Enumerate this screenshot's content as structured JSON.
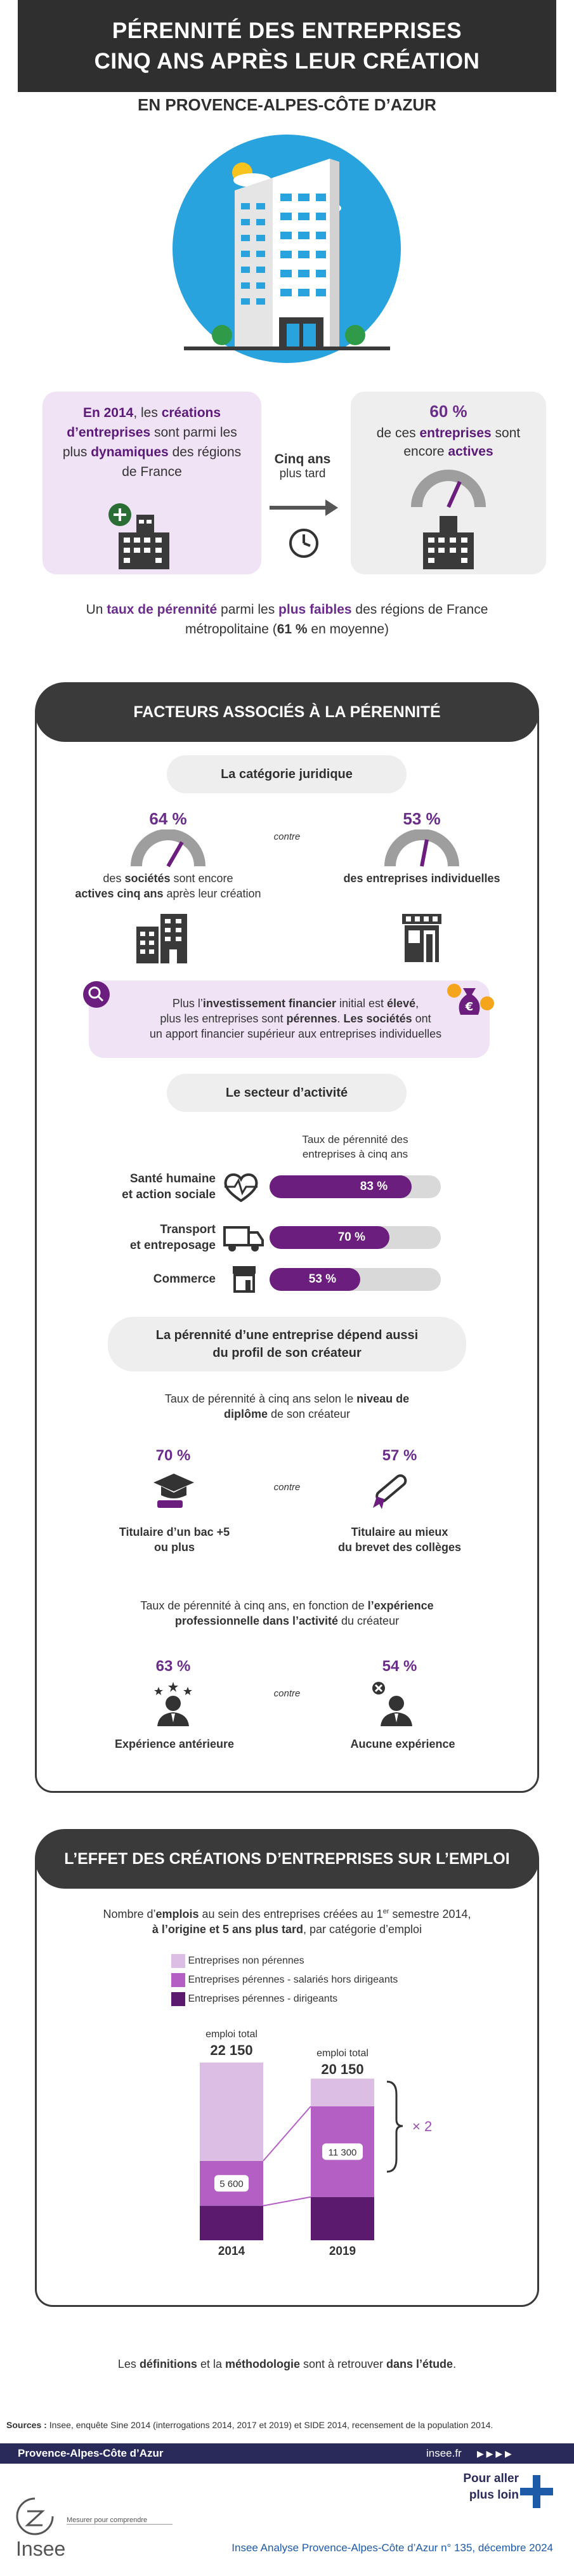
{
  "header": {
    "line1": "PÉRENNITÉ DES ENTREPRISES",
    "line2": "CINQ ANS APRÈS LEUR CRÉATION"
  },
  "region": "EN PROVENCE-ALPES-CÔTE D’AZUR",
  "intro": {
    "left_prefix": "En 2014",
    "left_mid1": ", les ",
    "left_bold1": "créations d’entreprises",
    "left_mid2": " sont parmi les plus ",
    "left_bold2": "dynamiques",
    "left_end": " des régions de France",
    "arrow_bold": "Cinq ans",
    "arrow_sub": "plus tard",
    "right_pct": "60 %",
    "right_mid1": "de ces ",
    "right_bold1": "entreprises",
    "right_mid2": " sont encore ",
    "right_bold2": "actives",
    "summary_1": "Un ",
    "summary_b1": "taux de pérennité",
    "summary_2": " parmi les ",
    "summary_b2": "plus faibles",
    "summary_3": " des régions de France métropolitaine (",
    "summary_b3": "61 %",
    "summary_4": " en moyenne)"
  },
  "section1": {
    "title": "FACTEURS ASSOCIÉS À LA PÉRENNITÉ",
    "legal": {
      "label": "La catégorie juridique",
      "left_pct": "64 %",
      "left_t1": "des ",
      "left_b1": "sociétés",
      "left_t2": " sont encore",
      "left_b2": "actives cinq ans",
      "left_t3": " après leur création",
      "contre": "contre",
      "right_pct": "53 %",
      "right_b": "des entreprises individuelles",
      "note_1": "Plus l’",
      "note_b1": "investissement financier",
      "note_2": " initial est ",
      "note_b2": "élevé",
      "note_3": ",",
      "note_4": "plus les entreprises sont ",
      "note_b3": "pérennes",
      "note_5": ". ",
      "note_b4": "Les sociétés",
      "note_6": " ont",
      "note_7": "un apport financier supérieur aux entreprises individuelles"
    },
    "sector": {
      "label": "Le secteur d’activité",
      "caption_line1": "Taux de pérennité des",
      "caption_line2": "entreprises à cinq ans",
      "rows": [
        {
          "label_l1": "Santé humaine",
          "label_l2": "et action sociale",
          "value": 83,
          "text": "83 %"
        },
        {
          "label_l1": "Transport",
          "label_l2": "et entreposage",
          "value": 70,
          "text": "70 %"
        },
        {
          "label_l1": "Commerce",
          "label_l2": "",
          "value": 53,
          "text": "53 %"
        }
      ]
    },
    "profile": {
      "label_l1": "La pérennité d’une entreprise dépend aussi",
      "label_l2": "du profil de son créateur",
      "diploma_t1": "Taux de pérennité à cinq ans selon le ",
      "diploma_b1": "niveau de",
      "diploma_b2": "diplôme",
      "diploma_t2": " de son créateur",
      "left_pct": "70 %",
      "left_l1": "Titulaire d’un bac +5",
      "left_l2": "ou plus",
      "contre": "contre",
      "right_pct": "57 %",
      "right_l1": "Titulaire au mieux",
      "right_l2": "du brevet des collèges",
      "exp_t1": "Taux de pérennité à cinq ans, en fonction de ",
      "exp_b1": "l’expérience",
      "exp_b2": "professionnelle dans l’activité",
      "exp_t2": " du créateur",
      "exp_left_pct": "63 %",
      "exp_left_label": "Expérience antérieure",
      "exp_contre": "contre",
      "exp_right_pct": "54 %",
      "exp_right_label": "Aucune expérience"
    }
  },
  "section2": {
    "title": "L’EFFET DES CRÉATIONS D’ENTREPRISES SUR L’EMPLOI",
    "intro_t1": "Nombre d’",
    "intro_b1": "emplois",
    "intro_t2": " au sein des entreprises créées au 1",
    "intro_sup": "er",
    "intro_t3": " semestre 2014,",
    "intro_b2": "à l’origine et 5 ans plus tard",
    "intro_t4": ", par catégorie d’emploi",
    "legend": [
      "Entreprises non pérennes",
      "Entreprises pérennes - salariés hors dirigeants",
      "Entreprises pérennes - dirigeants"
    ],
    "colors": {
      "non_perennes": "#dcbde3",
      "salaries": "#b35fc4",
      "dirigeants": "#5b1a6e"
    }
  },
  "chart_data": {
    "type": "bar",
    "categories": [
      "2014",
      "2019"
    ],
    "series": [
      {
        "name": "Entreprises pérennes - dirigeants",
        "values": [
          null,
          null
        ]
      },
      {
        "name": "Entreprises pérennes - salariés hors dirigeants",
        "values": [
          5600,
          11300
        ]
      },
      {
        "name": "Entreprises non pérennes",
        "values": [
          null,
          null
        ]
      }
    ],
    "totals": [
      22150,
      20150
    ],
    "total_label": "emploi total",
    "total_text": [
      "22 150",
      "20 150"
    ],
    "segment_text": [
      "5 600",
      "11 300"
    ],
    "growth_label": "× 2"
  },
  "closing": {
    "t1": "Les ",
    "b1": "définitions",
    "t2": " et la ",
    "b2": "méthodologie",
    "t3": " sont à retrouver ",
    "b3": "dans l’étude",
    "t4": "."
  },
  "sources": {
    "label": "Sources :",
    "text": " Insee, enquête Sine 2014 (interrogations 2014, 2017 et 2019) et SIDE 2014, recensement de la population 2014."
  },
  "footer": {
    "region": "Provence-Alpes-Côte d’Azur",
    "site": "insee.fr",
    "go_further_l1": "Pour aller",
    "go_further_l2": "plus loin",
    "tagline": "Mesurer pour comprendre",
    "logo": "Insee",
    "publication": "Insee Analyse Provence-Alpes-Côte d’Azur n° 135, décembre 2024"
  }
}
